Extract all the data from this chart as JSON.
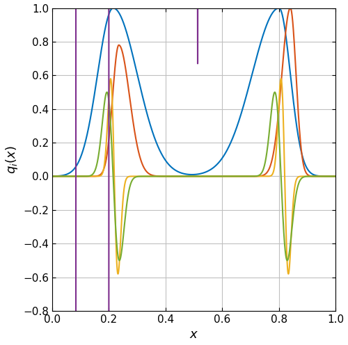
{
  "colors": [
    "#0072BD",
    "#D95319",
    "#EDB120",
    "#77AC30",
    "#7E2F8E"
  ],
  "xlim": [
    0,
    1
  ],
  "ylim": [
    -0.8,
    1.0
  ],
  "xlabel": "x",
  "ylabel": "q_i(x)",
  "xticks": [
    0,
    0.2,
    0.4,
    0.6,
    0.8,
    1.0
  ],
  "yticks": [
    -0.8,
    -0.6,
    -0.4,
    -0.2,
    0,
    0.2,
    0.4,
    0.6,
    0.8,
    1.0
  ],
  "grid": true,
  "n_points": 8000
}
